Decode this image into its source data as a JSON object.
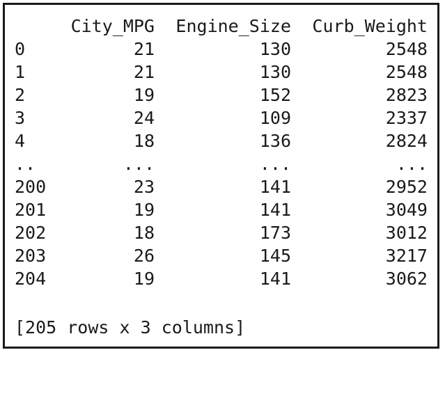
{
  "table": {
    "columns": [
      "City_MPG",
      "Engine_Size",
      "Curb_Weight"
    ],
    "rows": [
      {
        "index": "0",
        "values": [
          "21",
          "130",
          "2548"
        ]
      },
      {
        "index": "1",
        "values": [
          "21",
          "130",
          "2548"
        ]
      },
      {
        "index": "2",
        "values": [
          "19",
          "152",
          "2823"
        ]
      },
      {
        "index": "3",
        "values": [
          "24",
          "109",
          "2337"
        ]
      },
      {
        "index": "4",
        "values": [
          "18",
          "136",
          "2824"
        ]
      },
      {
        "index": "..",
        "values": [
          "...",
          "...",
          "..."
        ]
      },
      {
        "index": "200",
        "values": [
          "23",
          "141",
          "2952"
        ]
      },
      {
        "index": "201",
        "values": [
          "19",
          "141",
          "3049"
        ]
      },
      {
        "index": "202",
        "values": [
          "18",
          "173",
          "3012"
        ]
      },
      {
        "index": "203",
        "values": [
          "26",
          "145",
          "3217"
        ]
      },
      {
        "index": "204",
        "values": [
          "19",
          "141",
          "3062"
        ]
      }
    ]
  },
  "footer": "[205 rows x 3 columns]"
}
